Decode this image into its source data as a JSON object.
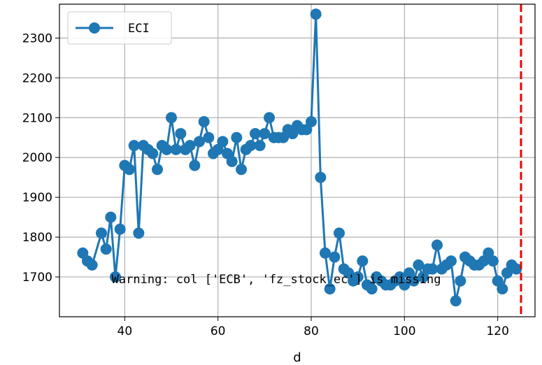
{
  "chart_data": {
    "type": "line",
    "title": "",
    "xlabel": "d",
    "ylabel": "",
    "xlim": [
      26,
      128
    ],
    "ylim": [
      1600,
      2385
    ],
    "xticks": [
      40,
      60,
      80,
      100,
      120
    ],
    "yticks": [
      1700,
      1800,
      1900,
      2000,
      2100,
      2200,
      2300
    ],
    "grid": true,
    "legend": {
      "placement": "top-left"
    },
    "series": [
      {
        "name": "ECI",
        "color": "#1f77b4",
        "marker": "circle",
        "x": [
          31,
          32,
          33,
          35,
          36,
          37,
          38,
          39,
          40,
          41,
          42,
          43,
          44,
          45,
          46,
          47,
          48,
          49,
          50,
          51,
          52,
          53,
          54,
          55,
          56,
          57,
          58,
          59,
          60,
          61,
          62,
          63,
          64,
          65,
          66,
          67,
          68,
          69,
          70,
          71,
          72,
          73,
          74,
          75,
          76,
          77,
          78,
          79,
          80,
          81,
          82,
          83,
          84,
          85,
          86,
          87,
          88,
          89,
          90,
          91,
          92,
          93,
          94,
          95,
          96,
          97,
          98,
          99,
          100,
          101,
          102,
          103,
          104,
          105,
          106,
          107,
          108,
          109,
          110,
          111,
          112,
          113,
          114,
          115,
          116,
          117,
          118,
          119,
          120,
          121,
          122,
          123,
          124
        ],
        "y": [
          1760,
          1740,
          1730,
          1810,
          1770,
          1850,
          1700,
          1820,
          1980,
          1970,
          2030,
          1810,
          2030,
          2020,
          2010,
          1970,
          2030,
          2020,
          2100,
          2020,
          2060,
          2020,
          2030,
          1980,
          2040,
          2090,
          2050,
          2010,
          2020,
          2040,
          2010,
          1990,
          2050,
          1970,
          2020,
          2030,
          2060,
          2030,
          2060,
          2100,
          2050,
          2050,
          2050,
          2070,
          2060,
          2080,
          2070,
          2070,
          2090,
          2360,
          1950,
          1760,
          1670,
          1750,
          1810,
          1720,
          1710,
          1690,
          1700,
          1740,
          1680,
          1670,
          1700,
          1690,
          1680,
          1680,
          1690,
          1700,
          1680,
          1710,
          1690,
          1730,
          1700,
          1720,
          1720,
          1780,
          1720,
          1730,
          1740,
          1640,
          1690,
          1750,
          1740,
          1730,
          1730,
          1740,
          1760,
          1740,
          1690,
          1670,
          1710,
          1730,
          1720
        ]
      }
    ],
    "reference_line": {
      "x": 125,
      "color": "#ee0000",
      "style": "dashed"
    },
    "annotation": {
      "text": "Warning: col ['ECB', 'fz_stock_ec'] is missing",
      "x": 37.2,
      "y": 1700
    }
  }
}
